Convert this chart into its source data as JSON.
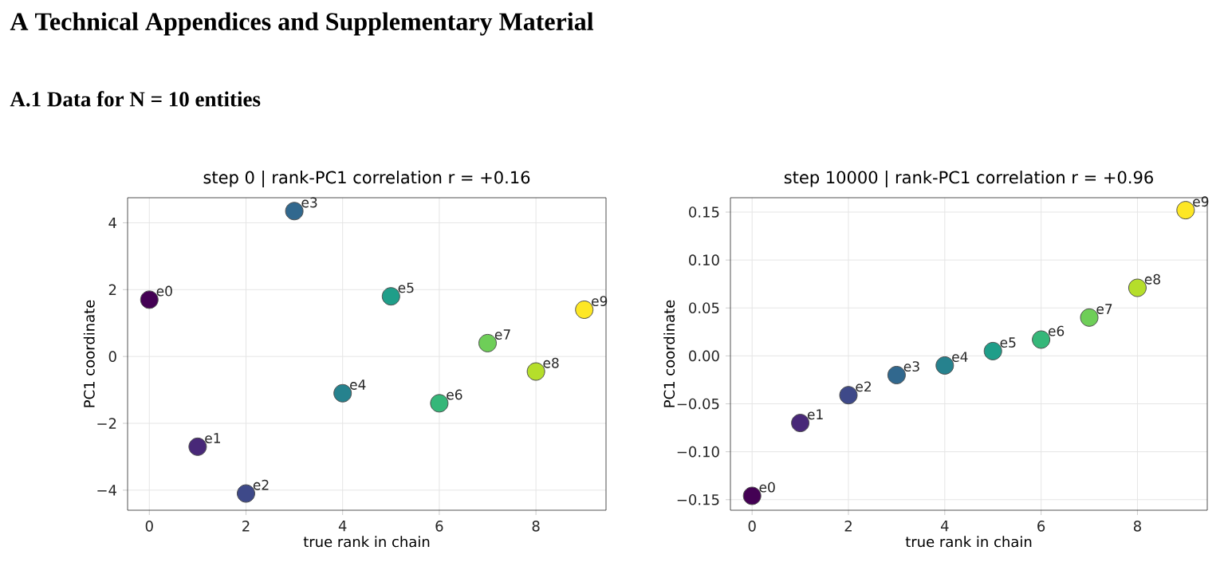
{
  "chart_data": [
    {
      "type": "scatter",
      "title": "step 0  |  rank-PC1 correlation r = +0.16",
      "xlabel": "true rank in chain",
      "ylabel": "PC1 coordinate",
      "x": [
        0,
        1,
        2,
        3,
        4,
        5,
        6,
        7,
        8,
        9
      ],
      "values": [
        1.7,
        -2.7,
        -4.1,
        4.35,
        -1.1,
        1.8,
        -1.4,
        0.4,
        -0.45,
        1.4
      ],
      "colors": [
        "#440154",
        "#482878",
        "#3e4989",
        "#31688e",
        "#26828e",
        "#1f9e89",
        "#35b779",
        "#6ece58",
        "#b5de2b",
        "#fde725"
      ],
      "xlim": [
        -0.45,
        9.45
      ],
      "ylim": [
        -4.6,
        4.75
      ],
      "xticks": [
        0,
        2,
        4,
        6,
        8
      ],
      "yticks": [
        {
          "value": -4,
          "label": "−4"
        },
        {
          "value": -2,
          "label": "−2"
        },
        0,
        2,
        4
      ],
      "grid": true,
      "marker": "circle",
      "annotations": [
        "A    Technical Appendices and Supplementary Material",
        "A.1    Data for N = 10 entities",
        {
          "text": "e0",
          "x": 0,
          "y": 1.7
        },
        {
          "text": "e1",
          "x": 1,
          "y": -2.7
        },
        {
          "text": "e2",
          "x": 2,
          "y": -4.1
        },
        {
          "text": "e3",
          "x": 3,
          "y": 4.35
        },
        {
          "text": "e4",
          "x": 4,
          "y": -1.1
        },
        {
          "text": "e5",
          "x": 5,
          "y": 1.8
        },
        {
          "text": "e6",
          "x": 6,
          "y": -1.4
        },
        {
          "text": "e7",
          "x": 7,
          "y": 0.4
        },
        {
          "text": "e8",
          "x": 8,
          "y": -0.45
        },
        {
          "text": "e9",
          "x": 9,
          "y": 1.4
        }
      ]
    },
    {
      "type": "scatter",
      "title": "step 10000  |  rank-PC1 correlation r = +0.96",
      "xlabel": "true rank in chain",
      "ylabel": "PC1 coordinate",
      "x": [
        0,
        1,
        2,
        3,
        4,
        5,
        6,
        7,
        8,
        9
      ],
      "values": [
        -0.146,
        -0.07,
        -0.041,
        -0.02,
        -0.01,
        0.005,
        0.017,
        0.04,
        0.071,
        0.152
      ],
      "colors": [
        "#440154",
        "#482878",
        "#3e4989",
        "#31688e",
        "#26828e",
        "#1f9e89",
        "#35b779",
        "#6ece58",
        "#b5de2b",
        "#fde725"
      ],
      "xlim": [
        -0.45,
        9.45
      ],
      "ylim": [
        -0.161,
        0.165
      ],
      "xticks": [
        0,
        2,
        4,
        6,
        8
      ],
      "yticks": [
        {
          "value": -0.15,
          "label": "−0.15"
        },
        {
          "value": -0.1,
          "label": "−0.10"
        },
        {
          "value": -0.05,
          "label": "−0.05"
        },
        {
          "value": 0,
          "label": "0.00"
        },
        {
          "value": 0.05,
          "label": "0.05"
        },
        {
          "value": 0.1,
          "label": "0.10"
        },
        {
          "value": 0.15,
          "label": "0.15"
        }
      ],
      "grid": true,
      "marker": "circle",
      "annotations": [
        {
          "text": "e0",
          "x": 0,
          "y": -0.146
        },
        {
          "text": "e1",
          "x": 1,
          "y": -0.07
        },
        {
          "text": "e2",
          "x": 2,
          "y": -0.041
        },
        {
          "text": "e3",
          "x": 3,
          "y": -0.02
        },
        {
          "text": "e4",
          "x": 4,
          "y": -0.01
        },
        {
          "text": "e5",
          "x": 5,
          "y": 0.005
        },
        {
          "text": "e6",
          "x": 6,
          "y": 0.017
        },
        {
          "text": "e7",
          "x": 7,
          "y": 0.04
        },
        {
          "text": "e8",
          "x": 8,
          "y": 0.071
        },
        {
          "text": "e9",
          "x": 9,
          "y": 0.152
        }
      ]
    }
  ]
}
